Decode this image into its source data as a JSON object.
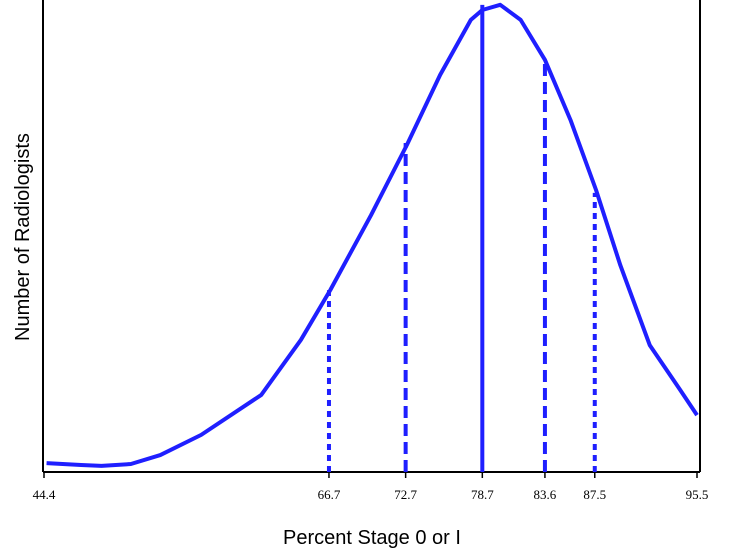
{
  "chart_data": {
    "type": "line",
    "x_label": "Percent Stage 0 or I",
    "y_label": "Number of Radiologists",
    "xlim": [
      44.4,
      95.5
    ],
    "ylim": [
      0,
      100
    ],
    "xticks": [
      44.4,
      66.7,
      72.7,
      78.7,
      83.6,
      87.5,
      95.5
    ],
    "series": [
      {
        "color": "#1f1fff",
        "x": [
          44.6,
          47.3,
          48.9,
          51.2,
          53.5,
          56.7,
          61.4,
          64.5,
          66.8,
          70.0,
          72.8,
          75.4,
          77.8,
          78.7,
          80.1,
          81.7,
          83.6,
          85.6,
          87.6,
          89.5,
          91.8,
          94.2,
          95.5
        ],
        "values": [
          1.9,
          1.5,
          1.3,
          1.7,
          3.6,
          7.9,
          16.4,
          28.1,
          38.7,
          54.7,
          69.6,
          84.5,
          96.2,
          98.3,
          99.4,
          96.2,
          87.7,
          74.9,
          60.0,
          44.0,
          27.0,
          17.4,
          12.1
        ]
      }
    ],
    "vlines": {
      "color": "#1f1fff",
      "x": [
        66.7,
        72.7,
        78.7,
        83.6,
        87.5
      ],
      "values": [
        38.7,
        70.0,
        99.4,
        88.0,
        59.4
      ],
      "styles": [
        "dotted",
        "dashed",
        "solid",
        "dashed",
        "dotted"
      ]
    }
  }
}
